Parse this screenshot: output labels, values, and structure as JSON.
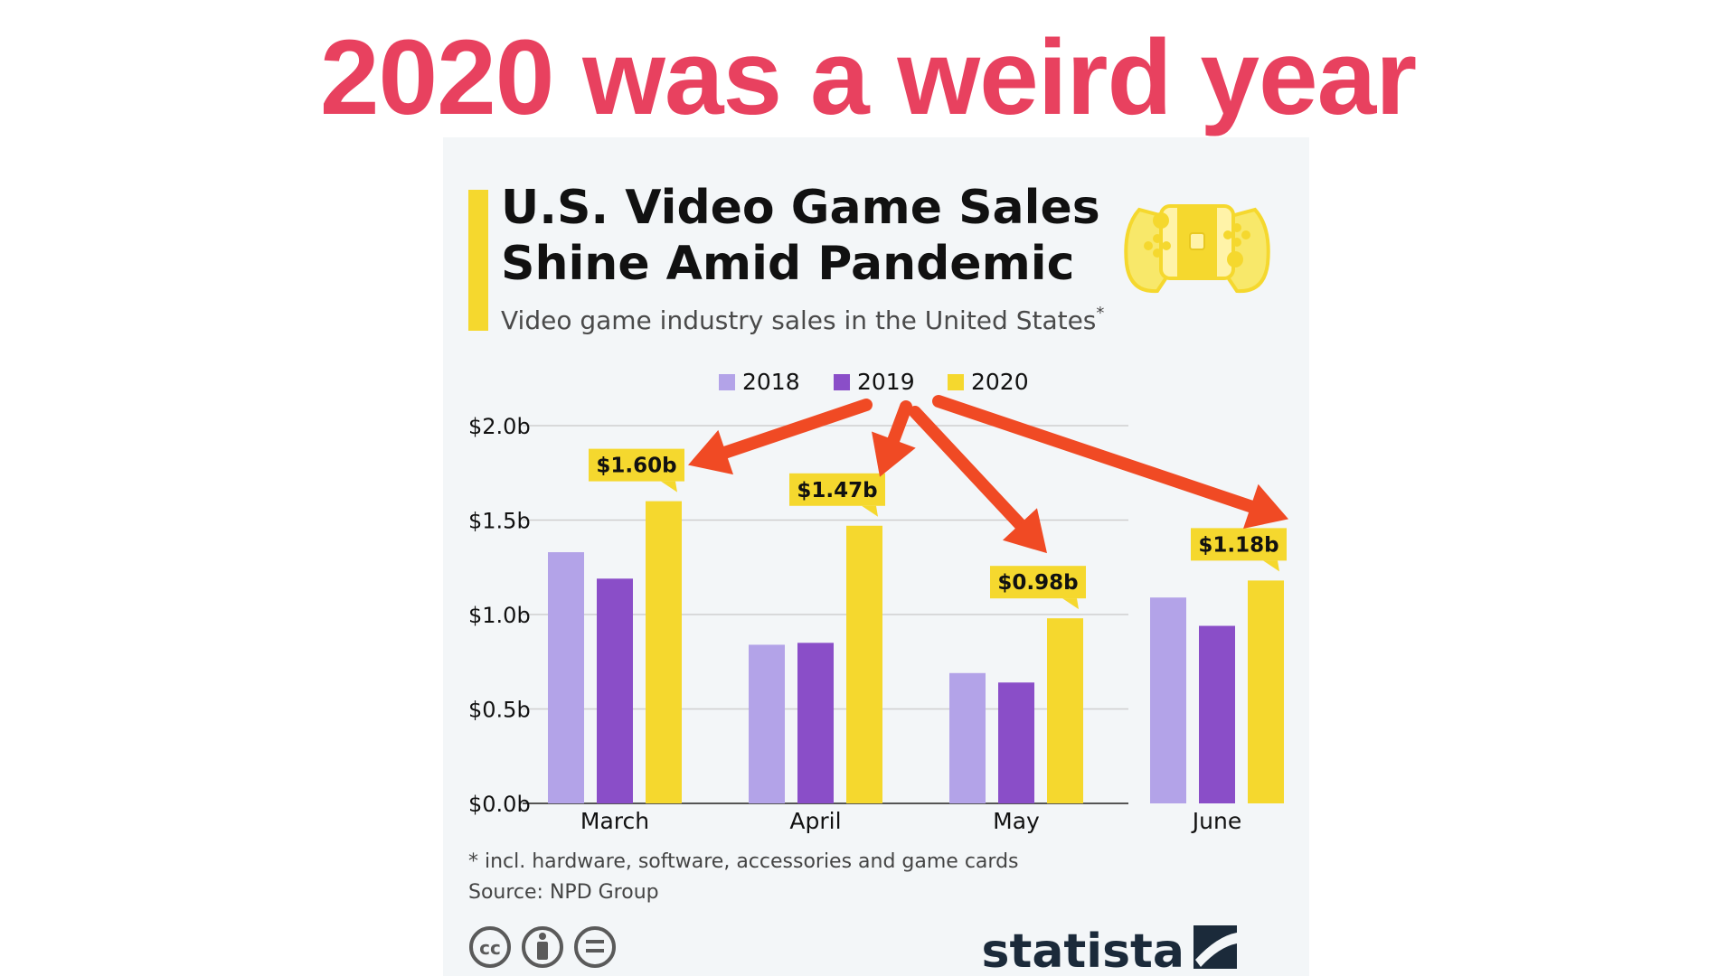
{
  "headline": "2020 was a weird year",
  "colors": {
    "headline": "#e8415f",
    "accent": "#f5d82e",
    "s2018": "#b3a3e8",
    "s2019": "#8a4ec8",
    "s2020": "#f5d82e",
    "arrow": "#f04a24",
    "text": "#111111",
    "grid": "#cfcfcf",
    "brand": "#1b2a3a"
  },
  "card": {
    "title_line1": "U.S. Video Game Sales",
    "title_line2": "Shine Amid Pandemic",
    "subtitle": "Video game industry sales in the United States",
    "subtitle_marker": "*",
    "footnote": "* incl. hardware, software, accessories and game cards",
    "source": "Source: NPD Group",
    "brand": "statista",
    "console_icon": "game-controller-icon",
    "license_icons": [
      "cc-icon",
      "attribution-icon",
      "no-derivatives-icon"
    ],
    "license_labels": [
      "cc",
      "",
      "="
    ]
  },
  "chart_data": {
    "type": "bar",
    "categories": [
      "March",
      "April",
      "May",
      "June"
    ],
    "series": [
      {
        "name": "2018",
        "values": [
          1.33,
          0.84,
          0.69,
          1.09
        ]
      },
      {
        "name": "2019",
        "values": [
          1.19,
          0.85,
          0.64,
          0.94
        ]
      },
      {
        "name": "2020",
        "values": [
          1.6,
          1.47,
          0.98,
          1.18
        ]
      }
    ],
    "data_labels": [
      "$1.60b",
      "$1.47b",
      "$0.98b",
      "$1.18b"
    ],
    "ylim": [
      0,
      2.0
    ],
    "yticks": [
      0,
      0.5,
      1.0,
      1.5,
      2.0
    ],
    "ytick_labels": [
      "$0.0b",
      "$0.5b",
      "$1.0b",
      "$1.5b",
      "$2.0b"
    ],
    "legend": [
      "2018",
      "2019",
      "2020"
    ],
    "legend_position": "top-center",
    "grid": true,
    "annotation": "arrows from the 2020 legend entry to each 2020 value label"
  }
}
